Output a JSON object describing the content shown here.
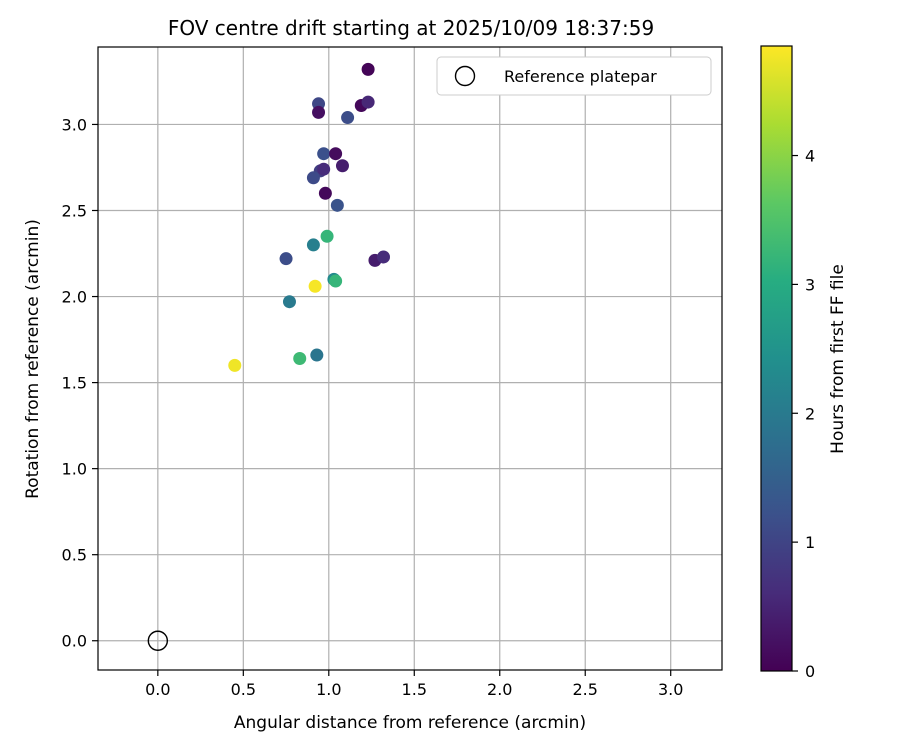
{
  "chart_data": {
    "type": "scatter",
    "title": "FOV centre drift starting at 2025/10/09 18:37:59",
    "xlabel": "Angular distance from reference (arcmin)",
    "ylabel": "Rotation from reference (arcmin)",
    "xlim": [
      -0.35,
      3.3
    ],
    "ylim": [
      -0.17,
      3.45
    ],
    "xticks": [
      0.0,
      0.5,
      1.0,
      1.5,
      2.0,
      2.5,
      3.0
    ],
    "xtick_labels": [
      "0.0",
      "0.5",
      "1.0",
      "1.5",
      "2.0",
      "2.5",
      "3.0"
    ],
    "yticks": [
      0.0,
      0.5,
      1.0,
      1.5,
      2.0,
      2.5,
      3.0
    ],
    "ytick_labels": [
      "0.0",
      "0.5",
      "1.0",
      "1.5",
      "2.0",
      "2.5",
      "3.0"
    ],
    "grid": true,
    "legend": {
      "position": "top-right",
      "entries": [
        {
          "label": "Reference platepar",
          "marker": "open-circle"
        }
      ]
    },
    "reference_point": {
      "x": 0.0,
      "y": 0.0
    },
    "colorbar": {
      "label": "Hours from first FF file",
      "colormap": "viridis",
      "range": [
        0,
        4.85
      ],
      "ticks": [
        0,
        1,
        2,
        3,
        4
      ],
      "tick_labels": [
        "0",
        "1",
        "2",
        "3",
        "4"
      ]
    },
    "points": [
      {
        "x": 1.23,
        "y": 3.32,
        "hours": 0.05
      },
      {
        "x": 0.94,
        "y": 3.12,
        "hours": 1.05
      },
      {
        "x": 1.19,
        "y": 3.11,
        "hours": 0.1
      },
      {
        "x": 1.23,
        "y": 3.13,
        "hours": 0.55
      },
      {
        "x": 0.94,
        "y": 3.07,
        "hours": 0.2
      },
      {
        "x": 1.11,
        "y": 3.04,
        "hours": 1.15
      },
      {
        "x": 0.97,
        "y": 2.83,
        "hours": 1.2
      },
      {
        "x": 1.04,
        "y": 2.83,
        "hours": 0.15
      },
      {
        "x": 1.08,
        "y": 2.76,
        "hours": 0.4
      },
      {
        "x": 0.95,
        "y": 2.73,
        "hours": 0.9
      },
      {
        "x": 0.97,
        "y": 2.74,
        "hours": 0.6
      },
      {
        "x": 0.91,
        "y": 2.69,
        "hours": 1.1
      },
      {
        "x": 0.98,
        "y": 2.6,
        "hours": 0.1
      },
      {
        "x": 1.05,
        "y": 2.53,
        "hours": 1.25
      },
      {
        "x": 0.99,
        "y": 2.35,
        "hours": 3.2
      },
      {
        "x": 0.91,
        "y": 2.3,
        "hours": 2.1
      },
      {
        "x": 0.75,
        "y": 2.22,
        "hours": 1.15
      },
      {
        "x": 1.27,
        "y": 2.21,
        "hours": 0.4
      },
      {
        "x": 1.32,
        "y": 2.23,
        "hours": 0.6
      },
      {
        "x": 1.03,
        "y": 2.1,
        "hours": 2.3
      },
      {
        "x": 1.04,
        "y": 2.09,
        "hours": 3.2
      },
      {
        "x": 0.92,
        "y": 2.06,
        "hours": 4.8
      },
      {
        "x": 0.77,
        "y": 1.97,
        "hours": 2.0
      },
      {
        "x": 0.93,
        "y": 1.66,
        "hours": 1.9
      },
      {
        "x": 0.83,
        "y": 1.64,
        "hours": 3.3
      },
      {
        "x": 0.45,
        "y": 1.6,
        "hours": 4.75
      }
    ]
  }
}
